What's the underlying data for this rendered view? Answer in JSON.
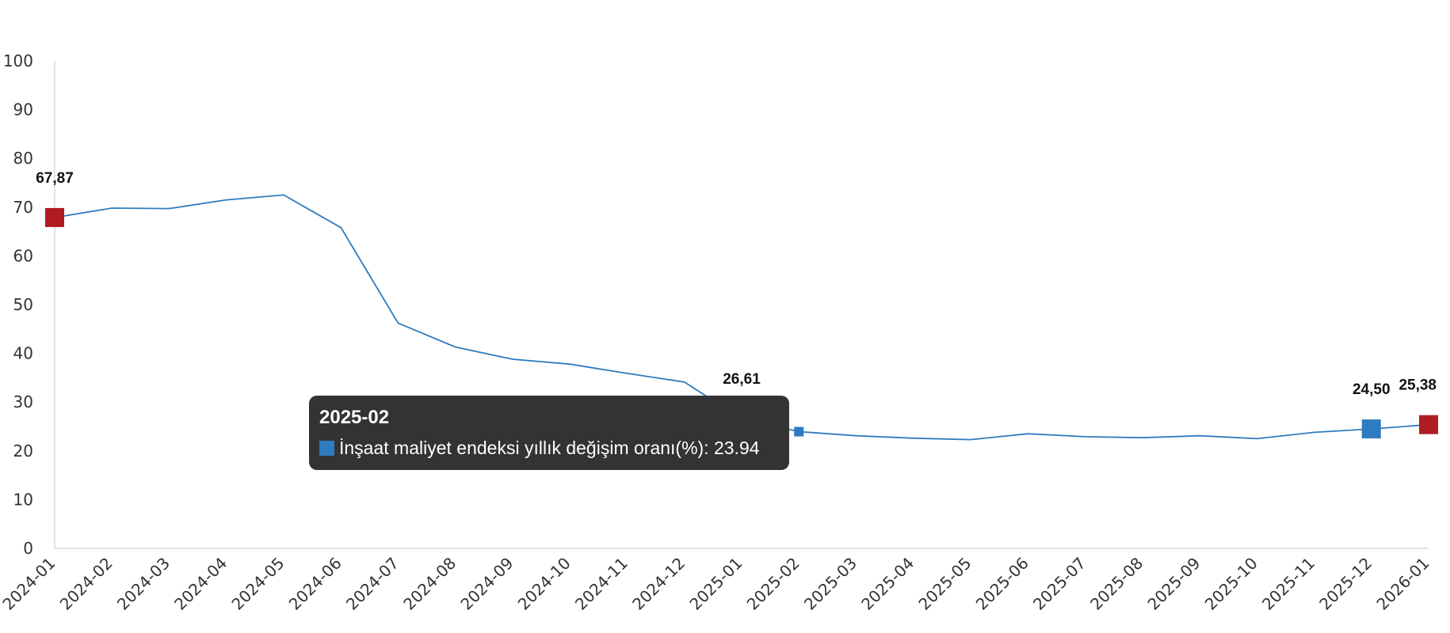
{
  "chart_data": {
    "type": "line",
    "categories": [
      "2024-01",
      "2024-02",
      "2024-03",
      "2024-04",
      "2024-05",
      "2024-06",
      "2024-07",
      "2024-08",
      "2024-09",
      "2024-10",
      "2024-11",
      "2024-12",
      "2025-01",
      "2025-02",
      "2025-03",
      "2025-04",
      "2025-05",
      "2025-06",
      "2025-07",
      "2025-08",
      "2025-09",
      "2025-10",
      "2025-11",
      "2025-12",
      "2026-01"
    ],
    "series": [
      {
        "name": "İnşaat maliyet endeksi yıllık değişim oranı(%)",
        "values": [
          67.87,
          69.8,
          69.7,
          71.5,
          72.5,
          65.8,
          46.2,
          41.3,
          38.8,
          37.8,
          35.9,
          34.1,
          26.61,
          23.94,
          23.1,
          22.6,
          22.3,
          23.5,
          22.9,
          22.7,
          23.1,
          22.5,
          23.8,
          24.5,
          25.38
        ],
        "color": "#2f7bbf"
      }
    ],
    "ylim": [
      0,
      100
    ],
    "yticks": [
      0,
      10,
      20,
      30,
      40,
      50,
      60,
      70,
      80,
      90,
      100
    ],
    "grid": false,
    "data_labels": [
      {
        "category": "2024-01",
        "text": "67,87",
        "marker_color": "#b01c22"
      },
      {
        "category": "2025-01",
        "text": "26,61",
        "marker_color": "#2a0a0a"
      },
      {
        "category": "2025-12",
        "text": "24,50",
        "marker_color": "#2f7bbf"
      },
      {
        "category": "2026-01",
        "text": "25,38",
        "marker_color": "#b01c22"
      }
    ],
    "colors": {
      "line": "#2f7bbf",
      "highlight_red": "#b01c22",
      "axis": "#d9d9d9"
    }
  },
  "tooltip": {
    "title": "2025-02",
    "series_label": "İnşaat maliyet endeksi yıllık değişim oranı(%)",
    "value": "23.94",
    "swatch_color": "#2f7bbf"
  }
}
